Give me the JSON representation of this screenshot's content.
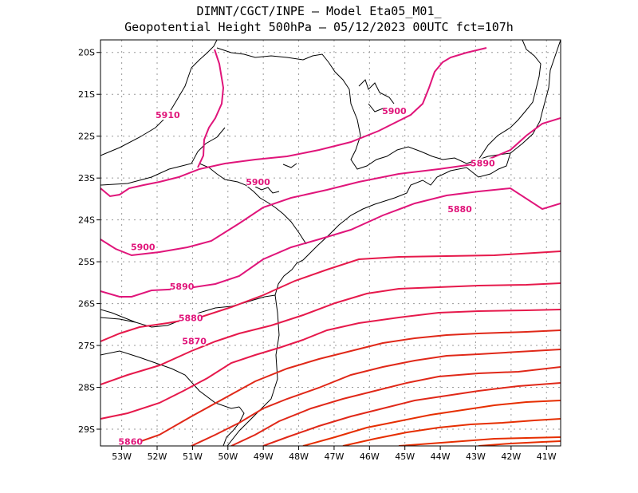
{
  "header": {
    "line1": "DIMNT/CGCT/INPE –  Model Eta05_M01_",
    "line2": "Geopotential Height 500hPa –  05/12/2023 00UTC fct=107h"
  },
  "map": {
    "lon_range": [
      -53.6,
      -40.6
    ],
    "lat_range": [
      -29.4,
      -19.7
    ],
    "lon_ticks": [
      {
        "v": -53,
        "label": "53W"
      },
      {
        "v": -52,
        "label": "52W"
      },
      {
        "v": -51,
        "label": "51W"
      },
      {
        "v": -50,
        "label": "50W"
      },
      {
        "v": -49,
        "label": "49W"
      },
      {
        "v": -48,
        "label": "48W"
      },
      {
        "v": -47,
        "label": "47W"
      },
      {
        "v": -46,
        "label": "46W"
      },
      {
        "v": -45,
        "label": "45W"
      },
      {
        "v": -44,
        "label": "44W"
      },
      {
        "v": -43,
        "label": "43W"
      },
      {
        "v": -42,
        "label": "42W"
      },
      {
        "v": -41,
        "label": "41W"
      }
    ],
    "lat_ticks": [
      {
        "v": -20,
        "label": "20S"
      },
      {
        "v": -21,
        "label": "21S"
      },
      {
        "v": -22,
        "label": "22S"
      },
      {
        "v": -23,
        "label": "23S"
      },
      {
        "v": -24,
        "label": "24S"
      },
      {
        "v": -25,
        "label": "25S"
      },
      {
        "v": -26,
        "label": "26S"
      },
      {
        "v": -27,
        "label": "27S"
      },
      {
        "v": -28,
        "label": "28S"
      },
      {
        "v": -29,
        "label": "29S"
      }
    ],
    "contour_labels": [
      {
        "text": "5910",
        "lon": -51.7,
        "lat": -21.55,
        "color": "#e0157a"
      },
      {
        "text": "5900",
        "lon": -45.3,
        "lat": -21.45,
        "color": "#e0157a"
      },
      {
        "text": "5900",
        "lon": -49.15,
        "lat": -23.15,
        "color": "#e0157a"
      },
      {
        "text": "5890",
        "lon": -42.8,
        "lat": -22.7,
        "color": "#e0157a"
      },
      {
        "text": "5900",
        "lon": -52.4,
        "lat": -24.7,
        "color": "#e0157a"
      },
      {
        "text": "5880",
        "lon": -43.45,
        "lat": -23.8,
        "color": "#e0157a"
      },
      {
        "text": "5890",
        "lon": -51.3,
        "lat": -25.65,
        "color": "#e0157a"
      },
      {
        "text": "5880",
        "lon": -51.05,
        "lat": -26.4,
        "color": "#e0157a"
      },
      {
        "text": "5870",
        "lon": -50.95,
        "lat": -26.95,
        "color": "#e0157a"
      },
      {
        "text": "5860",
        "lon": -52.75,
        "lat": -29.35,
        "color": "#e0157a"
      }
    ],
    "contour_colors": {
      "upper": "#e0157a",
      "mid": "#e6194b",
      "lower": "#e02818",
      "lowest": "#e62e00"
    }
  }
}
